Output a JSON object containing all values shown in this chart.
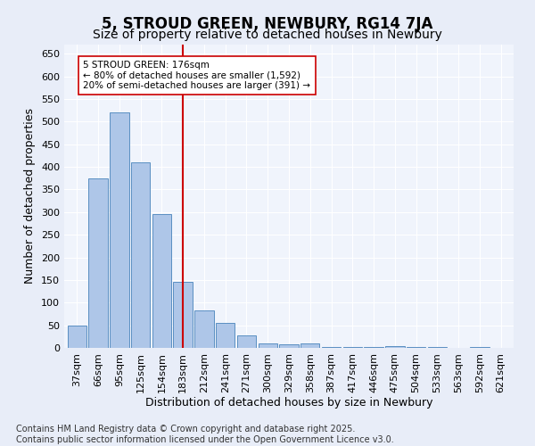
{
  "title": "5, STROUD GREEN, NEWBURY, RG14 7JA",
  "subtitle": "Size of property relative to detached houses in Newbury",
  "xlabel": "Distribution of detached houses by size in Newbury",
  "ylabel": "Number of detached properties",
  "categories": [
    "37sqm",
    "66sqm",
    "95sqm",
    "125sqm",
    "154sqm",
    "183sqm",
    "212sqm",
    "241sqm",
    "271sqm",
    "300sqm",
    "329sqm",
    "358sqm",
    "387sqm",
    "417sqm",
    "446sqm",
    "475sqm",
    "504sqm",
    "533sqm",
    "563sqm",
    "592sqm",
    "621sqm"
  ],
  "values": [
    50,
    375,
    520,
    410,
    295,
    145,
    83,
    55,
    27,
    10,
    8,
    10,
    1,
    1,
    1,
    3,
    1,
    1,
    0,
    1,
    0
  ],
  "bar_color": "#aec6e8",
  "bar_edge_color": "#5a8fc2",
  "vline_x_index": 5,
  "vline_color": "#cc0000",
  "annotation_text": "5 STROUD GREEN: 176sqm\n← 80% of detached houses are smaller (1,592)\n20% of semi-detached houses are larger (391) →",
  "annotation_box_color": "#ffffff",
  "annotation_box_edge": "#cc0000",
  "footer1": "Contains HM Land Registry data © Crown copyright and database right 2025.",
  "footer2": "Contains public sector information licensed under the Open Government Licence v3.0.",
  "ylim": [
    0,
    670
  ],
  "yticks": [
    0,
    50,
    100,
    150,
    200,
    250,
    300,
    350,
    400,
    450,
    500,
    550,
    600,
    650
  ],
  "bg_color": "#e8edf8",
  "plot_bg_color": "#f0f4fc",
  "title_fontsize": 12,
  "subtitle_fontsize": 10,
  "tick_fontsize": 8,
  "label_fontsize": 9,
  "footer_fontsize": 7
}
